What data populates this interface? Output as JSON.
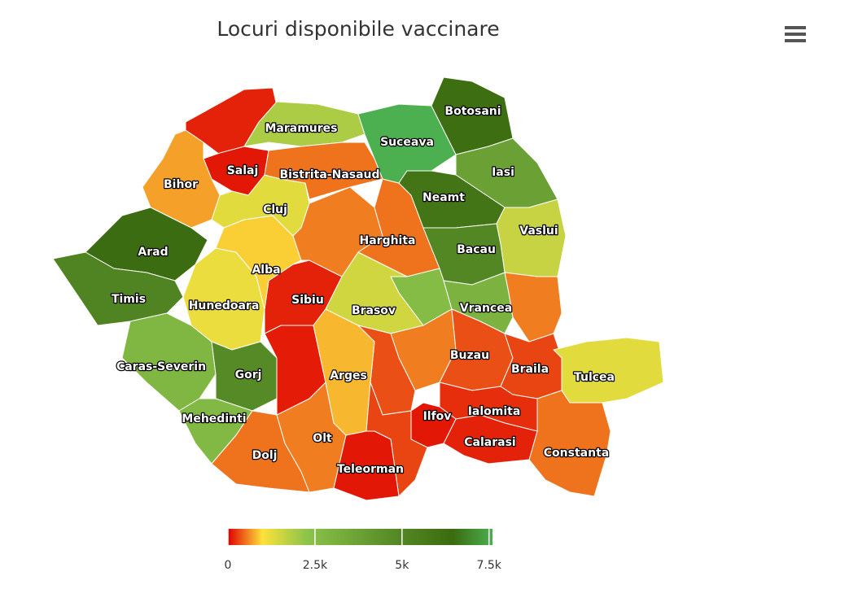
{
  "chart_data": {
    "type": "map",
    "title": "Locuri disponibile vaccinare",
    "categories": [
      null,
      "Maramures",
      "Salaj",
      "Bihor",
      "Arad",
      "Timis",
      "Caras-Severin",
      "Hunedoara",
      "Gorj",
      "Mehedinti",
      "Dolj",
      "Olt",
      null,
      "Sibiu",
      "Alba",
      "Cluj",
      "Bistrita-Nasaud",
      null,
      "Harghita",
      "Suceava",
      "Botosani",
      "Iasi",
      "Neamt",
      "Vaslui",
      "Bacau",
      null,
      "Brasov",
      "Vrancea",
      null,
      null,
      null,
      "Arges",
      "Buzau",
      "Braila",
      "Tulcea",
      "Constanta",
      "Ialomita",
      "Calarasi",
      "Ilfov",
      null,
      "Teleorman"
    ],
    "values": [
      150,
      1900,
      100,
      700,
      6400,
      5200,
      2800,
      1200,
      4800,
      2700,
      500,
      550,
      120,
      150,
      900,
      1300,
      500,
      550,
      500,
      7600,
      6300,
      3800,
      6000,
      1600,
      5000,
      2600,
      1500,
      3000,
      550,
      550,
      350,
      800,
      350,
      300,
      1300,
      500,
      200,
      150,
      100,
      300,
      100
    ],
    "colorlim": [
      0,
      7600
    ],
    "colorticks": [
      0,
      {
        "value": 2500,
        "label": "2.5k"
      },
      {
        "value": 5000,
        "label": "5k"
      },
      {
        "value": 7500,
        "label": "7.5k"
      }
    ],
    "color_stops": [
      [
        0,
        "#e00000"
      ],
      [
        0.13,
        "#fde23a"
      ],
      [
        0.3,
        "#8bc34a"
      ],
      [
        0.6,
        "#5a8f29"
      ],
      [
        0.85,
        "#3b6b10"
      ],
      [
        1,
        "#4caf50"
      ]
    ]
  }
}
